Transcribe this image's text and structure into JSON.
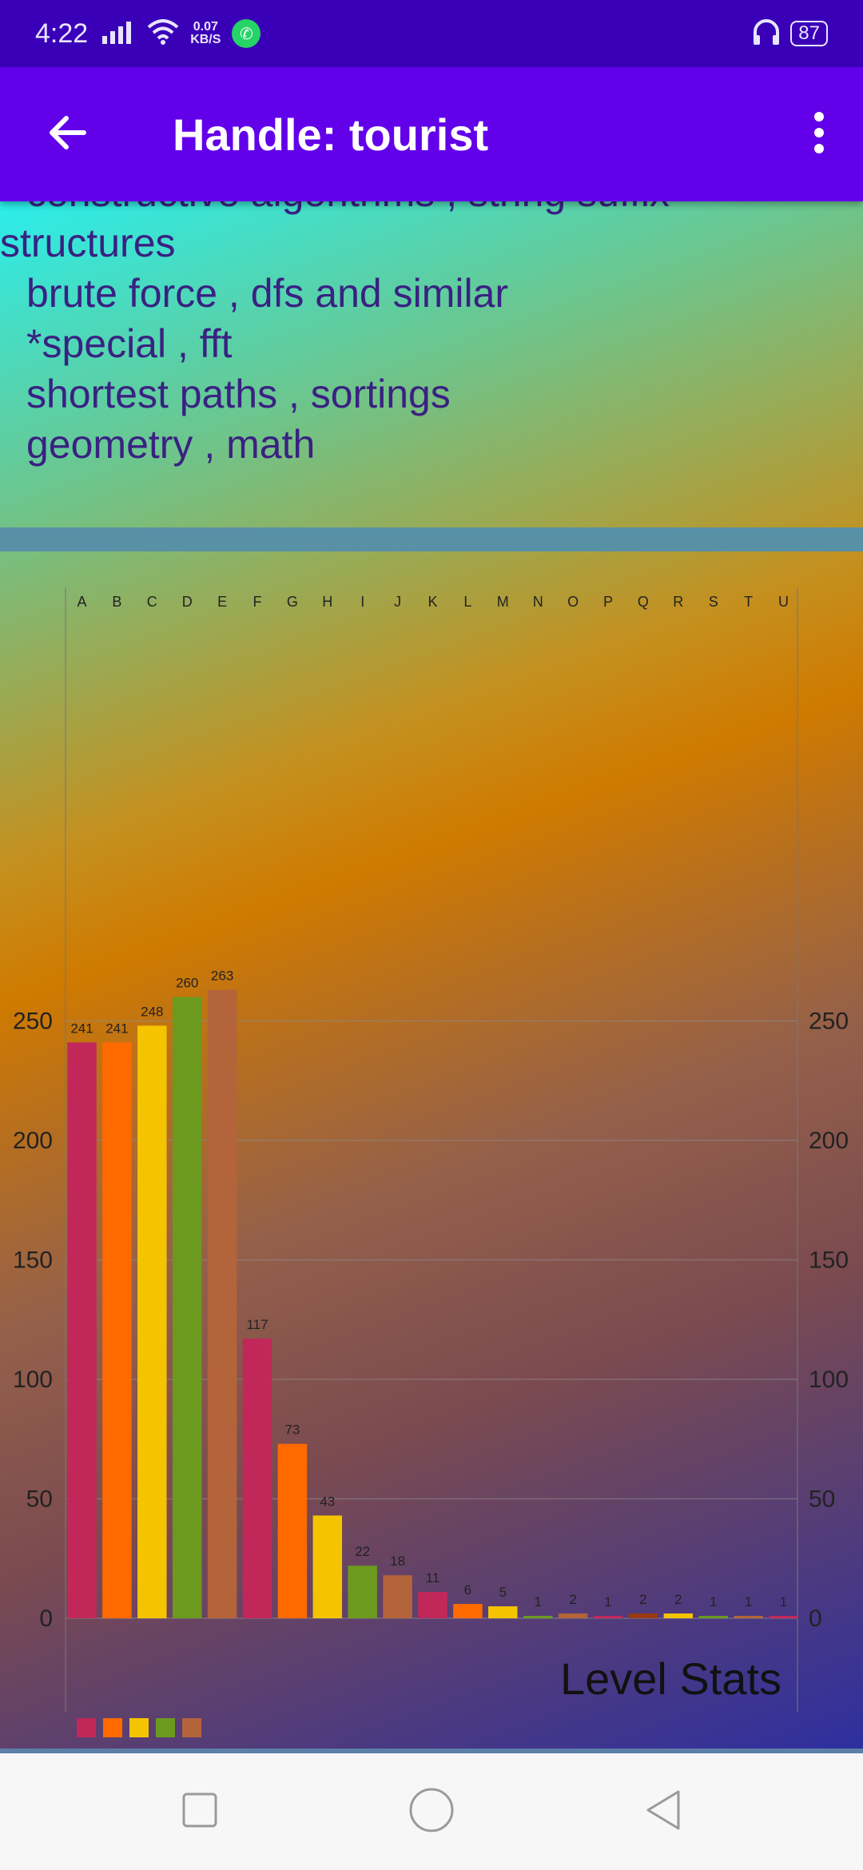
{
  "status_bar": {
    "time": "4:22",
    "speed_value": "0.07",
    "speed_unit": "KB/S",
    "battery": "87",
    "icons": [
      "signal-icon",
      "wifi-icon",
      "whatsapp-icon",
      "headphones-icon",
      "battery-icon"
    ]
  },
  "app_bar": {
    "title": "Handle: tourist",
    "back_icon": "arrow-left-icon",
    "menu_icon": "more-vert-icon"
  },
  "tags": [
    "constructive algorithms , string suffix",
    "structures",
    "brute force , dfs and similar",
    "*special , fft",
    "shortest paths , sortings",
    "geometry , math"
  ],
  "chart_data": {
    "type": "bar",
    "title": "Level Stats",
    "categories": [
      "A",
      "B",
      "C",
      "D",
      "E",
      "F",
      "G",
      "H",
      "I",
      "J",
      "K",
      "L",
      "M",
      "N",
      "O",
      "P",
      "Q",
      "R",
      "S",
      "T",
      "U"
    ],
    "values": [
      241,
      241,
      248,
      260,
      263,
      117,
      73,
      43,
      22,
      18,
      11,
      6,
      5,
      1,
      2,
      1,
      2,
      2,
      1,
      1,
      1
    ],
    "colors": [
      "#c2275a",
      "#ff6a00",
      "#f5c400",
      "#6b9a1f",
      "#b3643a",
      "#c2275a",
      "#ff6a00",
      "#f5c400",
      "#6b9a1f",
      "#b3643a",
      "#c2275a",
      "#ff6a00",
      "#f5c400",
      "#6b9a1f",
      "#b3643a",
      "#c2275a",
      "#9a3a12",
      "#f5c400",
      "#6b9a1f",
      "#b3643a",
      "#c2275a"
    ],
    "legend_colors": [
      "#c2275a",
      "#ff6a00",
      "#f5c400",
      "#6b9a1f",
      "#b3643a"
    ],
    "ylim": [
      0,
      290
    ],
    "yticks": [
      0,
      50,
      100,
      150,
      200,
      250
    ],
    "grid": true,
    "axis_labels_position": "left and right",
    "category_labels_position": "top",
    "legend_placement": "bottom-left"
  },
  "nav_bar": {
    "icons": [
      "recents-square-icon",
      "home-circle-icon",
      "back-triangle-icon"
    ]
  }
}
